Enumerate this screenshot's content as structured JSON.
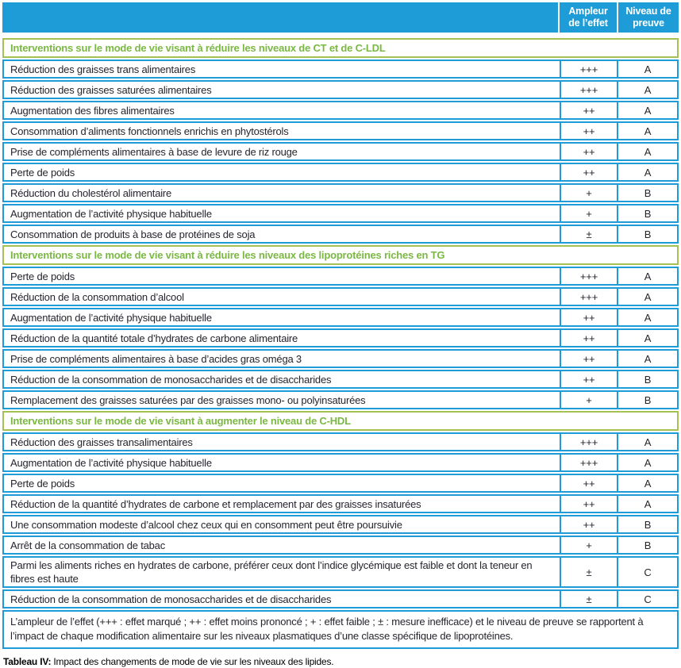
{
  "colors": {
    "header_blue": "#1e9cd7",
    "section_green_border": "#a5c154",
    "section_green_text": "#7bb843",
    "body_text": "#26252d"
  },
  "header": {
    "effect_label": "Ampleur\nde l’effet",
    "evidence_label": "Niveau de\npreuve"
  },
  "sections": [
    {
      "title": "Interventions sur le mode de vie visant à réduire les niveaux de CT et de C-LDL",
      "rows": [
        {
          "label": "Réduction des graisses trans alimentaires",
          "effect": "+++",
          "evidence": "A"
        },
        {
          "label": "Réduction des graisses saturées alimentaires",
          "effect": "+++",
          "evidence": "A"
        },
        {
          "label": "Augmentation des fibres alimentaires",
          "effect": "++",
          "evidence": "A"
        },
        {
          "label": "Consommation d’aliments fonctionnels enrichis en phytostérols",
          "effect": "++",
          "evidence": "A"
        },
        {
          "label": "Prise de compléments alimentaires à base de levure de riz rouge",
          "effect": "++",
          "evidence": "A"
        },
        {
          "label": "Perte de poids",
          "effect": "++",
          "evidence": "A"
        },
        {
          "label": "Réduction du cholestérol alimentaire",
          "effect": "+",
          "evidence": "B"
        },
        {
          "label": "Augmentation de l’activité physique habituelle",
          "effect": "+",
          "evidence": "B"
        },
        {
          "label": "Consommation de produits à base de protéines de soja",
          "effect": "±",
          "evidence": "B"
        }
      ]
    },
    {
      "title": "Interventions sur le mode de vie visant à réduire les niveaux des lipoprotéines riches en TG",
      "rows": [
        {
          "label": "Perte de poids",
          "effect": "+++",
          "evidence": "A"
        },
        {
          "label": "Réduction de la consommation d’alcool",
          "effect": "+++",
          "evidence": "A"
        },
        {
          "label": "Augmentation de l’activité physique habituelle",
          "effect": "++",
          "evidence": "A"
        },
        {
          "label": "Réduction de la quantité totale d’hydrates de carbone alimentaire",
          "effect": "++",
          "evidence": "A"
        },
        {
          "label": "Prise de compléments alimentaires à base d’acides gras oméga 3",
          "effect": "++",
          "evidence": "A"
        },
        {
          "label": "Réduction de la consommation de monosaccharides et de disaccharides",
          "effect": "++",
          "evidence": "B"
        },
        {
          "label": "Remplacement des graisses saturées par des graisses mono- ou polyinsaturées",
          "effect": "+",
          "evidence": "B"
        }
      ]
    },
    {
      "title": "Interventions sur le mode de vie visant à augmenter le niveau de C-HDL",
      "rows": [
        {
          "label": "Réduction des graisses transalimentaires",
          "effect": "+++",
          "evidence": "A"
        },
        {
          "label": "Augmentation de l’activité physique habituelle",
          "effect": "+++",
          "evidence": "A"
        },
        {
          "label": "Perte de poids",
          "effect": "++",
          "evidence": "A"
        },
        {
          "label": "Réduction de la quantité d’hydrates de carbone et remplacement par des graisses insaturées",
          "effect": "++",
          "evidence": "A"
        },
        {
          "label": "Une consommation modeste d’alcool chez ceux qui en consomment peut être poursuivie",
          "effect": "++",
          "evidence": "B"
        },
        {
          "label": "Arrêt de la consommation de tabac",
          "effect": "+",
          "evidence": "B"
        },
        {
          "label": "Parmi les aliments riches en hydrates de carbone, préférer ceux dont l’indice glycémique est faible et dont la teneur en fibres est haute",
          "effect": "±",
          "evidence": "C"
        },
        {
          "label": "Réduction de la consommation de monosaccharides et de disaccharides",
          "effect": "±",
          "evidence": "C"
        }
      ]
    }
  ],
  "footnote": "L’ampleur de l’effet (+++ : effet marqué ; ++ : effet moins prononcé ; + : effet faible ; ± : mesure inefficace) et le niveau de preuve se rapportent à l’impact de chaque modification alimentaire sur les niveaux plasmatiques d’une classe spécifique de lipoprotéines.",
  "caption": {
    "label": "Tableau IV:",
    "text": " Impact des changements de mode de vie sur les niveaux des lipides."
  }
}
